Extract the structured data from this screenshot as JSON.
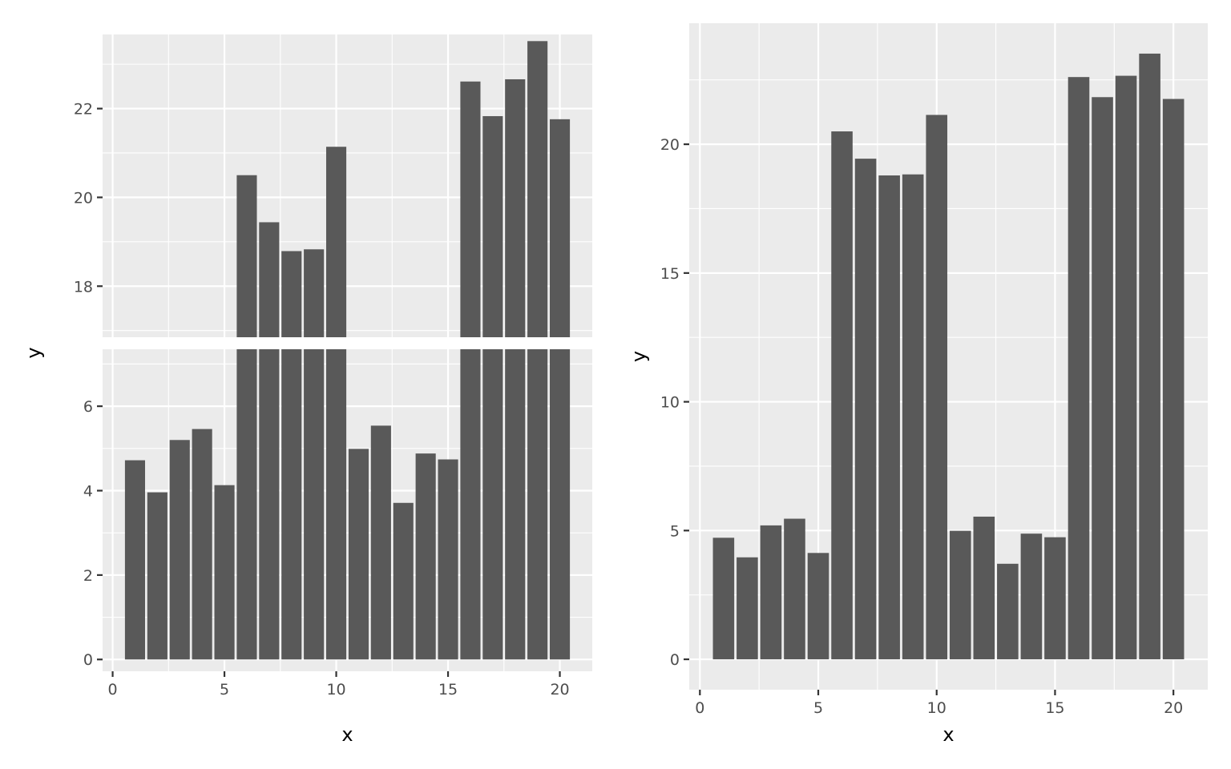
{
  "chart_data": [
    {
      "type": "bar",
      "panel": "broken-axis",
      "x": [
        1,
        2,
        3,
        4,
        5,
        6,
        7,
        8,
        9,
        10,
        11,
        12,
        13,
        14,
        15,
        16,
        17,
        18,
        19,
        20
      ],
      "values": [
        4.72,
        3.96,
        5.2,
        5.46,
        4.13,
        20.5,
        19.44,
        18.79,
        18.83,
        21.14,
        4.99,
        5.54,
        3.71,
        4.88,
        4.74,
        22.61,
        21.83,
        22.66,
        23.52,
        21.76
      ],
      "xlabel": "x",
      "ylabel": "y",
      "xlim": [
        -0.45,
        21.45
      ],
      "x_ticks": [
        0,
        5,
        10,
        15,
        20
      ],
      "x_tick_labels": [
        "0",
        "5",
        "10",
        "15",
        "20"
      ],
      "segments": [
        {
          "ylim": [
            16.85,
            23.67
          ],
          "y_ticks": [
            18,
            20,
            22
          ],
          "y_tick_labels": [
            "18",
            "20",
            "22"
          ]
        },
        {
          "ylim": [
            -0.28,
            7.35
          ],
          "y_ticks": [
            0,
            2,
            4,
            6
          ],
          "y_tick_labels": [
            "0",
            "2",
            "4",
            "6"
          ]
        }
      ],
      "grid": true,
      "legend": "none"
    },
    {
      "type": "bar",
      "panel": "full-axis",
      "x": [
        1,
        2,
        3,
        4,
        5,
        6,
        7,
        8,
        9,
        10,
        11,
        12,
        13,
        14,
        15,
        16,
        17,
        18,
        19,
        20
      ],
      "values": [
        4.72,
        3.96,
        5.2,
        5.46,
        4.13,
        20.5,
        19.44,
        18.79,
        18.83,
        21.14,
        4.99,
        5.54,
        3.71,
        4.88,
        4.74,
        22.61,
        21.83,
        22.66,
        23.52,
        21.76
      ],
      "xlabel": "x",
      "ylabel": "y",
      "xlim": [
        -0.45,
        21.45
      ],
      "ylim": [
        -1.18,
        24.7
      ],
      "x_ticks": [
        0,
        5,
        10,
        15,
        20
      ],
      "x_tick_labels": [
        "0",
        "5",
        "10",
        "15",
        "20"
      ],
      "y_ticks": [
        0,
        5,
        10,
        15,
        20
      ],
      "y_tick_labels": [
        "0",
        "5",
        "10",
        "15",
        "20"
      ],
      "grid": true,
      "legend": "none"
    }
  ]
}
